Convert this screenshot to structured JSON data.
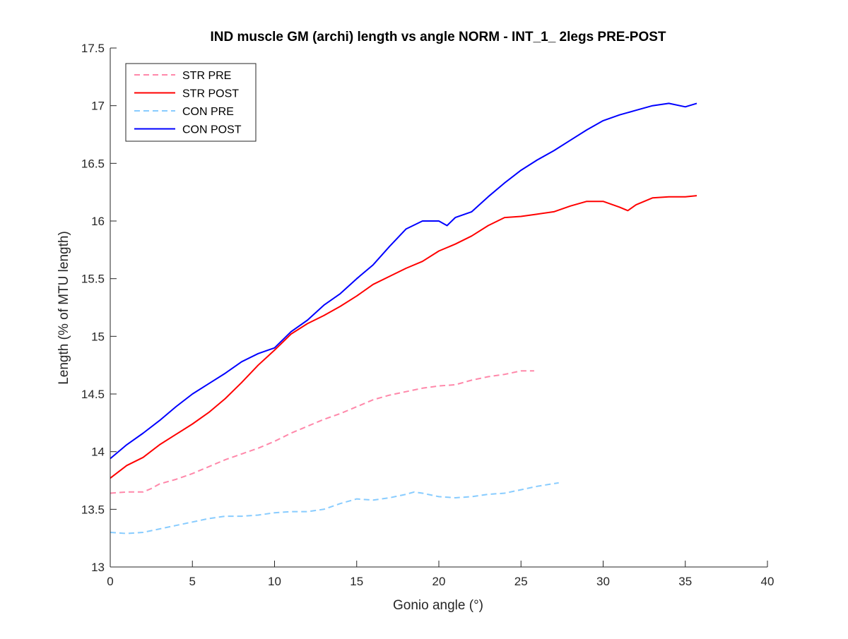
{
  "chart_data": {
    "type": "line",
    "title": "IND muscle GM (archi) length vs angle NORM - INT_1_ 2legs PRE-POST",
    "xlabel": "Gonio angle (°)",
    "ylabel": "Length (% of MTU length)",
    "xlim": [
      0,
      40
    ],
    "ylim": [
      13,
      17.5
    ],
    "xticks": [
      0,
      5,
      10,
      15,
      20,
      25,
      30,
      35,
      40
    ],
    "yticks": [
      13,
      13.5,
      14,
      14.5,
      15,
      15.5,
      16,
      16.5,
      17,
      17.5
    ],
    "xtick_labels": [
      "0",
      "5",
      "10",
      "15",
      "20",
      "25",
      "30",
      "35",
      "40"
    ],
    "ytick_labels": [
      "13",
      "13.5",
      "14",
      "14.5",
      "15",
      "15.5",
      "16",
      "16.5",
      "17",
      "17.5"
    ],
    "grid": false,
    "legend_position": "top-left",
    "series": [
      {
        "name": "STR PRE",
        "color": "#ff88aa",
        "dash": "dashed",
        "x": [
          0,
          1,
          2,
          2.5,
          3,
          4,
          5,
          6,
          7,
          8,
          9,
          10,
          11,
          12,
          13,
          14,
          15,
          16,
          17,
          18,
          19,
          20,
          21,
          22,
          23,
          24,
          25,
          25.8
        ],
        "y": [
          13.64,
          13.65,
          13.65,
          13.68,
          13.72,
          13.76,
          13.81,
          13.87,
          13.93,
          13.98,
          14.03,
          14.09,
          14.16,
          14.22,
          14.28,
          14.33,
          14.39,
          14.45,
          14.49,
          14.52,
          14.55,
          14.57,
          14.58,
          14.62,
          14.65,
          14.67,
          14.7,
          14.7
        ]
      },
      {
        "name": "STR POST",
        "color": "#ff0000",
        "dash": "solid",
        "x": [
          0,
          1,
          2,
          3,
          4,
          5,
          6,
          7,
          8,
          9,
          10,
          11,
          12,
          13,
          14,
          15,
          16,
          17,
          18,
          19,
          20,
          21,
          22,
          23,
          24,
          25,
          26,
          27,
          28,
          29,
          30,
          31,
          31.5,
          32,
          33,
          34,
          35,
          35.7
        ],
        "y": [
          13.77,
          13.88,
          13.95,
          14.06,
          14.15,
          14.24,
          14.34,
          14.46,
          14.6,
          14.75,
          14.88,
          15.02,
          15.11,
          15.18,
          15.26,
          15.35,
          15.45,
          15.52,
          15.59,
          15.65,
          15.74,
          15.8,
          15.87,
          15.96,
          16.03,
          16.04,
          16.06,
          16.08,
          16.13,
          16.17,
          16.17,
          16.12,
          16.09,
          16.14,
          16.2,
          16.21,
          16.21,
          16.22
        ]
      },
      {
        "name": "CON PRE",
        "color": "#88ccff",
        "dash": "dashed",
        "x": [
          0,
          1,
          2,
          3,
          4,
          5,
          6,
          7,
          8,
          9,
          10,
          11,
          12,
          13,
          14,
          15,
          16,
          17,
          18,
          18.5,
          19,
          20,
          21,
          22,
          23,
          24,
          25,
          26,
          27.3
        ],
        "y": [
          13.3,
          13.29,
          13.3,
          13.33,
          13.36,
          13.39,
          13.42,
          13.44,
          13.44,
          13.45,
          13.47,
          13.48,
          13.48,
          13.5,
          13.55,
          13.59,
          13.58,
          13.6,
          13.63,
          13.65,
          13.64,
          13.61,
          13.6,
          13.61,
          13.63,
          13.64,
          13.67,
          13.7,
          13.73
        ]
      },
      {
        "name": "CON POST",
        "color": "#0000ff",
        "dash": "solid",
        "x": [
          0,
          1,
          2,
          3,
          4,
          5,
          6,
          7,
          8,
          9,
          10,
          11,
          12,
          13,
          14,
          15,
          16,
          17,
          18,
          19,
          20,
          20.5,
          21,
          22,
          23,
          24,
          25,
          26,
          27,
          28,
          29,
          30,
          31,
          32,
          33,
          34,
          35,
          35.7
        ],
        "y": [
          13.94,
          14.06,
          14.16,
          14.27,
          14.39,
          14.5,
          14.59,
          14.68,
          14.78,
          14.85,
          14.9,
          15.04,
          15.14,
          15.27,
          15.37,
          15.5,
          15.62,
          15.78,
          15.93,
          16.0,
          16.0,
          15.96,
          16.03,
          16.08,
          16.21,
          16.33,
          16.44,
          16.53,
          16.61,
          16.7,
          16.79,
          16.87,
          16.92,
          16.96,
          17.0,
          17.02,
          16.99,
          17.02
        ]
      }
    ]
  }
}
